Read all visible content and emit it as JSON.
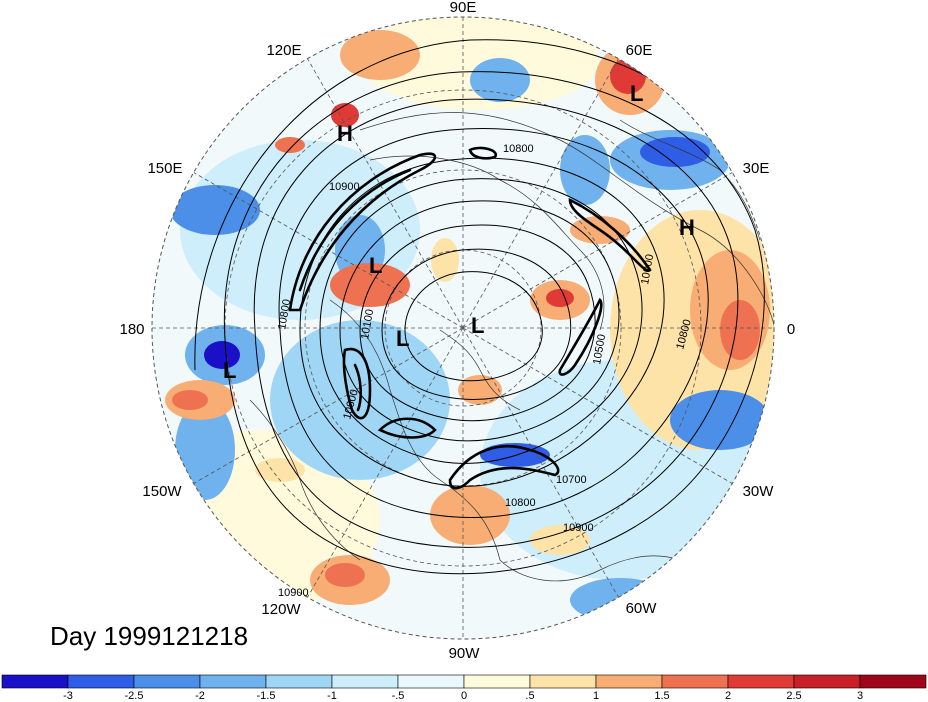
{
  "map": {
    "projection": "north-polar-stereographic",
    "longitude_labels": [
      "90E",
      "60E",
      "30E",
      "0",
      "30W",
      "60W",
      "90W",
      "120W",
      "150W",
      "180",
      "150E",
      "120E"
    ],
    "pressure_centers": [
      "H",
      "L",
      "H",
      "L",
      "L",
      "L",
      "L"
    ],
    "contour_labels": [
      "10800",
      "10900",
      "10800",
      "10700",
      "10800",
      "10900",
      "10900",
      "10100",
      "10600",
      "10500",
      "10800",
      "10000"
    ],
    "date_text": "Day 1999121218"
  },
  "colorbar": {
    "tick_labels": [
      "-3",
      "-2.5",
      "-2",
      "-1.5",
      "-1",
      "-.5",
      "0",
      ".5",
      "1",
      "1.5",
      "2",
      "2.5",
      "3"
    ],
    "colors": [
      "#1a10c8",
      "#2f5de6",
      "#4b8fe8",
      "#6fb2ee",
      "#9fd6f5",
      "#cdeefa",
      "#e9f8fd",
      "#fefadb",
      "#fde3a8",
      "#f7ad74",
      "#ee7252",
      "#e03a36",
      "#c91f26",
      "#a0061a"
    ]
  }
}
